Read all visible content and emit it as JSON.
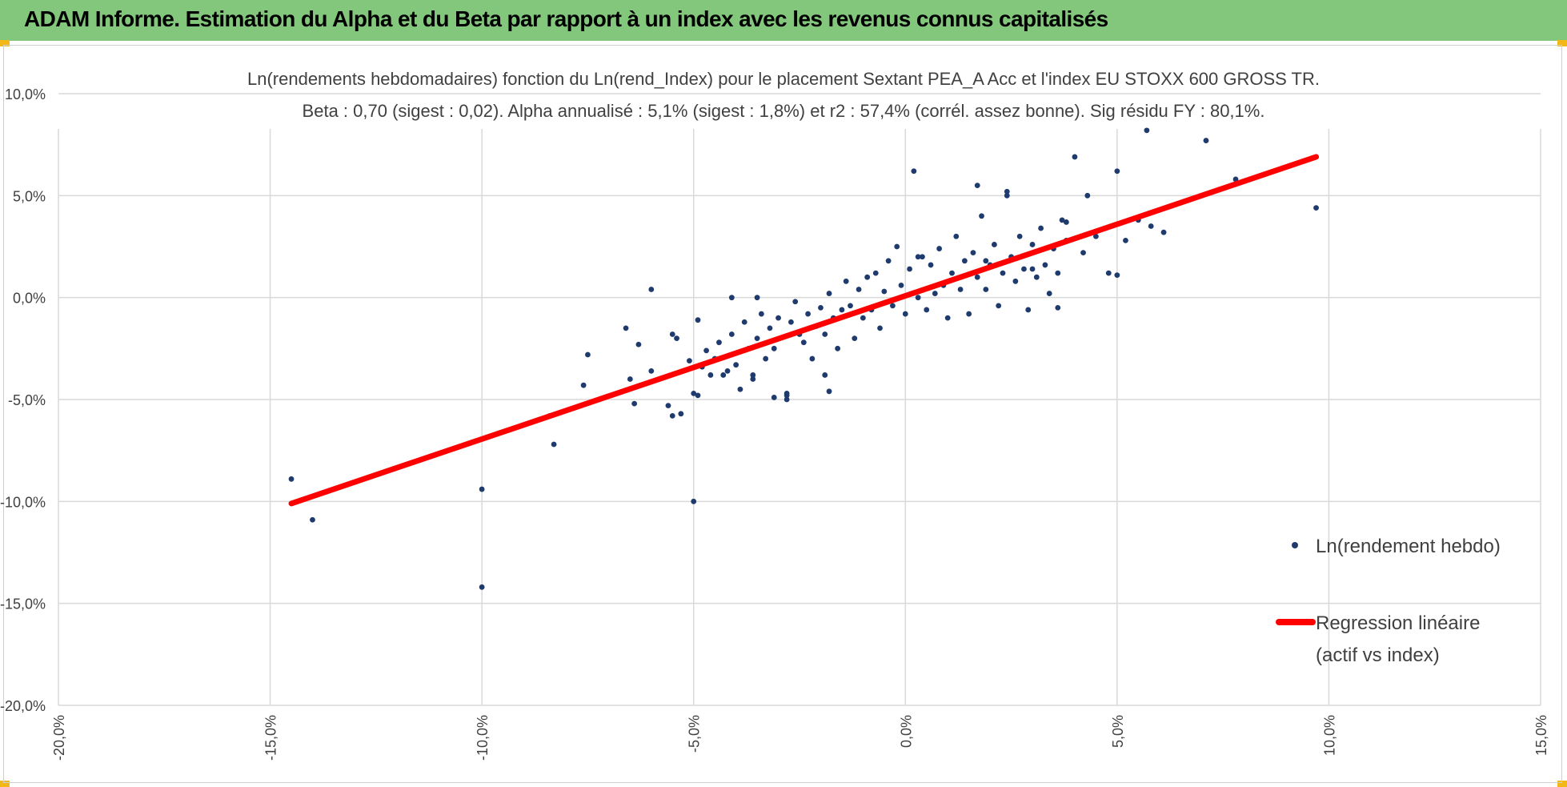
{
  "header": {
    "title": "ADAM Informe. Estimation du Alpha et du Beta par rapport à un index avec les revenus connus capitalisés"
  },
  "colors": {
    "banner": "#82c77b",
    "corner_accent": "#f2b817",
    "points": "#1f3b6e",
    "regression": "#ff0000",
    "grid": "#d9d9d9"
  },
  "chart_data": {
    "type": "scatter",
    "title": "Ln(rendements hebdomadaires) fonction du Ln(rend_Index) pour le placement Sextant PEA_A Acc et l'index EU STOXX 600 GROSS TR.",
    "subtitle": "Beta : 0,70 (sigest : 0,02). Alpha annualisé : 5,1% (sigest : 1,8%) et r2 : 57,4% (corrél. assez bonne). Sig résidu FY : 80,1%.",
    "xlim": [
      -0.2,
      0.15
    ],
    "ylim": [
      -0.2,
      0.1
    ],
    "x_ticks": [
      -0.2,
      -0.15,
      -0.1,
      -0.05,
      0.0,
      0.05,
      0.1,
      0.15
    ],
    "y_ticks": [
      -0.2,
      -0.15,
      -0.1,
      -0.05,
      0.0,
      0.05,
      0.1
    ],
    "x_tick_labels": [
      "-20,0%",
      "-15,0%",
      "-10,0%",
      "-5,0%",
      "0,0%",
      "5,0%",
      "10,0%",
      "15,0%"
    ],
    "y_tick_labels": [
      "-20,0%",
      "-15,0%",
      "-10,0%",
      "-5,0%",
      "0,0%",
      "5,0%",
      "10,0%"
    ],
    "grid": true,
    "legend_position": "right",
    "series": [
      {
        "name": "Ln(rendement hebdo)",
        "kind": "points",
        "color": "#1f3b6e",
        "x": [
          -0.145,
          -0.14,
          -0.1,
          -0.1,
          -0.084,
          -0.083,
          -0.075,
          -0.076,
          -0.065,
          -0.064,
          -0.066,
          -0.063,
          -0.06,
          -0.06,
          -0.056,
          -0.055,
          -0.055,
          -0.054,
          -0.053,
          -0.051,
          -0.05,
          -0.049,
          -0.048,
          -0.05,
          -0.047,
          -0.046,
          -0.045,
          -0.049,
          -0.044,
          -0.042,
          -0.041,
          -0.04,
          -0.039,
          -0.038,
          -0.037,
          -0.036,
          -0.035,
          -0.034,
          -0.033,
          -0.032,
          -0.031,
          -0.03,
          -0.028,
          -0.027,
          -0.026,
          -0.025,
          -0.024,
          -0.023,
          -0.022,
          -0.021,
          -0.02,
          -0.019,
          -0.018,
          -0.017,
          -0.016,
          -0.015,
          -0.014,
          -0.013,
          -0.012,
          -0.011,
          -0.01,
          -0.009,
          -0.008,
          -0.007,
          -0.006,
          -0.005,
          -0.004,
          -0.003,
          -0.002,
          -0.001,
          0.0,
          0.001,
          0.002,
          0.003,
          0.004,
          0.005,
          0.006,
          0.007,
          0.008,
          0.009,
          0.01,
          0.011,
          0.012,
          0.013,
          0.014,
          0.015,
          0.016,
          0.017,
          0.018,
          0.019,
          0.02,
          0.021,
          0.022,
          0.023,
          0.024,
          0.025,
          0.026,
          0.027,
          0.028,
          0.029,
          0.03,
          0.031,
          0.032,
          0.033,
          0.034,
          0.035,
          0.036,
          0.037,
          0.038,
          0.04,
          0.042,
          0.043,
          0.045,
          0.048,
          0.05,
          0.052,
          0.055,
          0.058,
          0.061,
          0.071,
          0.078,
          0.097,
          0.003,
          -0.028,
          -0.036,
          -0.043,
          -0.018,
          -0.019,
          -0.041,
          -0.035,
          -0.031,
          -0.028,
          0.017,
          0.024,
          0.038,
          0.057,
          0.05,
          0.03,
          0.036,
          0.019
        ],
        "y": [
          -0.089,
          -0.109,
          -0.094,
          -0.142,
          -0.058,
          -0.072,
          -0.028,
          -0.043,
          -0.04,
          -0.052,
          -0.015,
          -0.023,
          0.004,
          -0.036,
          -0.053,
          -0.058,
          -0.018,
          -0.02,
          -0.057,
          -0.031,
          -0.1,
          -0.048,
          -0.034,
          -0.047,
          -0.026,
          -0.038,
          -0.03,
          -0.011,
          -0.022,
          -0.036,
          -0.018,
          -0.033,
          -0.045,
          -0.012,
          -0.025,
          -0.04,
          -0.02,
          -0.008,
          -0.03,
          -0.015,
          -0.025,
          -0.01,
          -0.047,
          -0.012,
          -0.002,
          -0.018,
          -0.022,
          -0.008,
          -0.03,
          -0.014,
          -0.005,
          -0.018,
          0.002,
          -0.01,
          -0.025,
          -0.006,
          0.008,
          -0.004,
          -0.02,
          0.004,
          -0.01,
          0.01,
          -0.006,
          0.012,
          -0.015,
          0.003,
          0.018,
          -0.004,
          0.025,
          0.006,
          -0.008,
          0.014,
          0.062,
          0.0,
          0.02,
          -0.006,
          0.016,
          0.002,
          0.024,
          0.006,
          -0.01,
          0.012,
          0.03,
          0.004,
          0.018,
          -0.008,
          0.022,
          0.01,
          0.04,
          0.004,
          0.016,
          0.026,
          -0.004,
          0.012,
          0.052,
          0.02,
          0.008,
          0.03,
          0.014,
          -0.006,
          0.026,
          0.01,
          0.034,
          0.016,
          0.002,
          0.024,
          0.012,
          0.038,
          0.028,
          0.069,
          0.022,
          0.05,
          0.03,
          0.012,
          0.062,
          0.028,
          0.038,
          0.035,
          0.032,
          0.077,
          0.058,
          0.044,
          0.02,
          -0.048,
          -0.038,
          -0.038,
          -0.046,
          -0.038,
          0.0,
          0.0,
          -0.049,
          -0.05,
          0.055,
          0.05,
          0.037,
          0.082,
          0.011,
          0.014,
          -0.005,
          0.018
        ]
      },
      {
        "name": "Regression linéaire (actif vs index)",
        "kind": "line",
        "color": "#ff0000",
        "x": [
          -0.145,
          0.097
        ],
        "y": [
          -0.101,
          0.069
        ]
      }
    ],
    "legend": {
      "points_label": "Ln(rendement hebdo)",
      "line_label_1": "Regression linéaire",
      "line_label_2": "(actif vs index)"
    }
  }
}
